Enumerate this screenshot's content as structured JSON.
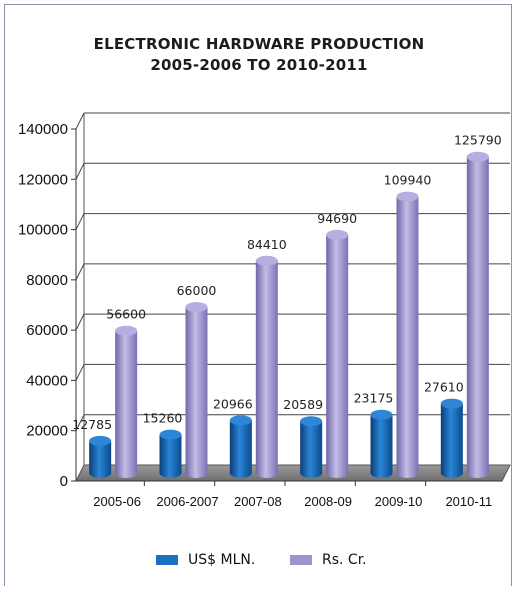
{
  "chart_data": {
    "type": "bar",
    "title_line1": "ELECTRONIC HARDWARE PRODUCTION",
    "title_line2": "2005-2006 TO 2010-2011",
    "categories": [
      "2005-06",
      "2006-2007",
      "2007-08",
      "2008-09",
      "2009-10",
      "2010-11"
    ],
    "series": [
      {
        "name": "US$ MLN.",
        "values": [
          12785,
          15260,
          20966,
          20589,
          23175,
          27610
        ],
        "color": "#1a6fc0"
      },
      {
        "name": "Rs. Cr.",
        "values": [
          56600,
          66000,
          84410,
          94690,
          109940,
          125790
        ],
        "color": "#9c94cc"
      }
    ],
    "ylim": [
      0,
      140000
    ],
    "y_ticks": [
      "0",
      "20000",
      "40000",
      "60000",
      "80000",
      "100000",
      "120000",
      "140000"
    ],
    "grid": true,
    "legend_position": "bottom"
  }
}
